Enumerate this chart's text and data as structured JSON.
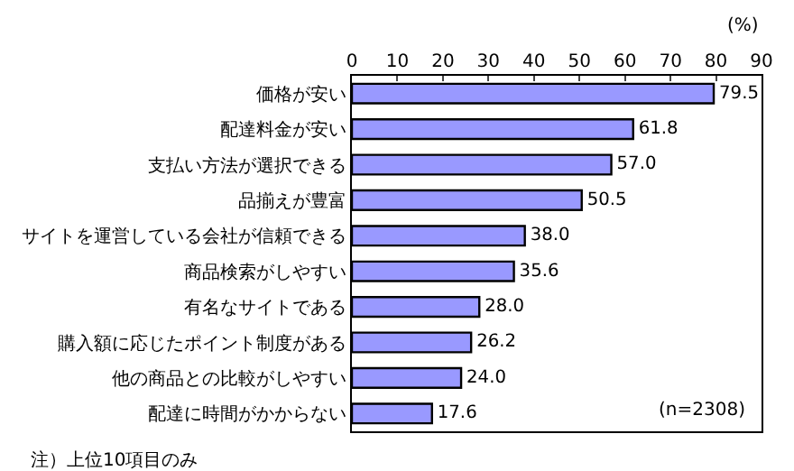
{
  "chart_data": {
    "type": "bar",
    "orientation": "horizontal",
    "categories": [
      "価格が安い",
      "配達料金が安い",
      "支払い方法が選択できる",
      "品揃えが豊富",
      "サイトを運営している会社が信頼できる",
      "商品検索がしやすい",
      "有名なサイトである",
      "購入額に応じたポイント制度がある",
      "他の商品との比較がしやすい",
      "配達に時間がかからない"
    ],
    "values": [
      79.5,
      61.8,
      57.0,
      50.5,
      38.0,
      35.6,
      28.0,
      26.2,
      24.0,
      17.6
    ],
    "value_labels": [
      "79.5",
      "61.8",
      "57.0",
      "50.5",
      "38.0",
      "35.6",
      "28.0",
      "26.2",
      "24.0",
      "17.6"
    ],
    "color": "#9999ff",
    "xlabel": "(%)",
    "xlim": [
      0,
      90
    ],
    "xticks": [
      0,
      10,
      20,
      30,
      40,
      50,
      60,
      70,
      80,
      90
    ],
    "annotations": [
      "(n=2308)",
      "注）上位10項目のみ"
    ]
  }
}
